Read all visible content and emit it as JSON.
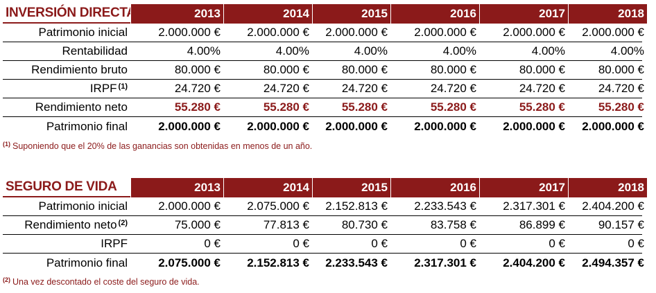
{
  "table1": {
    "title": "INVERSIÓN DIRECTA",
    "years": [
      "2013",
      "2014",
      "2015",
      "2016",
      "2017",
      "2018"
    ],
    "rows": [
      {
        "label": "Patrimonio inicial",
        "sup": "",
        "values": [
          "2.000.000 €",
          "2.000.000 €",
          "2.000.000 €",
          "2.000.000 €",
          "2.000.000 €",
          "2.000.000 €"
        ]
      },
      {
        "label": "Rentabilidad",
        "sup": "",
        "values": [
          "4.00%",
          "4.00%",
          "4.00%",
          "4.00%",
          "4.00%",
          "4.00%"
        ]
      },
      {
        "label": "Rendimiento bruto",
        "sup": "",
        "values": [
          "80.000 €",
          "80.000 €",
          "80.000 €",
          "80.000 €",
          "80.000 €",
          "80.000 €"
        ]
      },
      {
        "label": "IRPF",
        "sup": "(1)",
        "values": [
          "24.720 €",
          "24.720 €",
          "24.720 €",
          "24.720 €",
          "24.720 €",
          "24.720 €"
        ]
      },
      {
        "label": "Rendimiento neto",
        "sup": "",
        "values": [
          "55.280 €",
          "55.280 €",
          "55.280 €",
          "55.280 €",
          "55.280 €",
          "55.280 €"
        ]
      },
      {
        "label": "Patrimonio final",
        "sup": "",
        "values": [
          "2.000.000 €",
          "2.000.000 €",
          "2.000.000 €",
          "2.000.000 €",
          "2.000.000 €",
          "2.000.000 €"
        ]
      }
    ],
    "note_mark": "(1)",
    "note": "Suponiendo que el 20% de las ganancias son obtenidas en menos de un año."
  },
  "table2": {
    "title": "SEGURO DE VIDA",
    "years": [
      "2013",
      "2014",
      "2015",
      "2016",
      "2017",
      "2018"
    ],
    "rows": [
      {
        "label": "Patrimonio inicial",
        "sup": "",
        "values": [
          "2.000.000 €",
          "2.075.000 €",
          "2.152.813 €",
          "2.233.543 €",
          "2.317.301 €",
          "2.404.200 €"
        ]
      },
      {
        "label": "Rendimiento neto",
        "sup": "(2)",
        "values": [
          "75.000 €",
          "77.813 €",
          "80.730 €",
          "83.758 €",
          "86.899 €",
          "90.157 €"
        ]
      },
      {
        "label": "IRPF",
        "sup": "",
        "values": [
          "0 €",
          "0 €",
          "0 €",
          "0 €",
          "0 €",
          "0 €"
        ]
      },
      {
        "label": "Patrimonio final",
        "sup": "",
        "values": [
          "2.075.000 €",
          "2.152.813 €",
          "2.233.543 €",
          "2.317.301 €",
          "2.404.200 €",
          "2.494.357 €"
        ]
      }
    ],
    "note_mark": "(2)",
    "note": "Una vez descontado el coste del seguro de vida."
  },
  "colors": {
    "accent": "#8b1a1a",
    "header_text": "#ffffff",
    "body_text": "#000000"
  }
}
